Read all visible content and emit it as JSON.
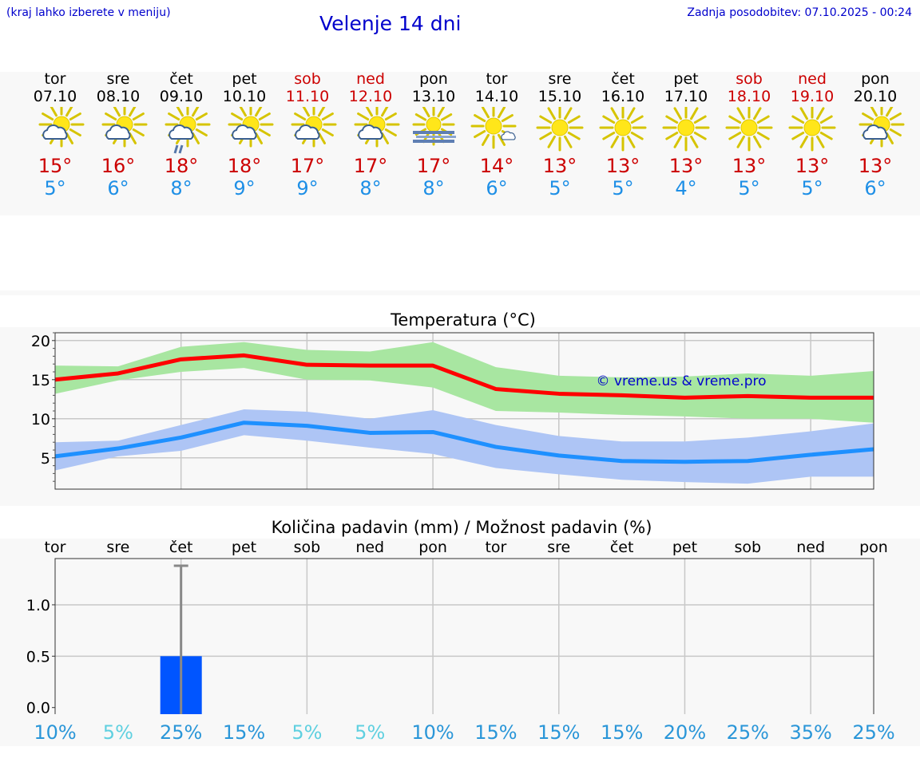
{
  "header": {
    "location_hint": "(kraj lahko izberete v meniju)",
    "title": "Velenje 14 dni",
    "updated": "Zadnja posodobitev: 07.10.2025 - 00:24"
  },
  "days": [
    {
      "name": "tor",
      "date": "07.10",
      "weekend": false,
      "icon": "partly-cloudy-icon",
      "tmax": "15°",
      "tmin": "5°"
    },
    {
      "name": "sre",
      "date": "08.10",
      "weekend": false,
      "icon": "partly-cloudy-icon",
      "tmax": "16°",
      "tmin": "6°"
    },
    {
      "name": "čet",
      "date": "09.10",
      "weekend": false,
      "icon": "partly-cloudy-rain-icon",
      "tmax": "18°",
      "tmin": "8°"
    },
    {
      "name": "pet",
      "date": "10.10",
      "weekend": false,
      "icon": "partly-cloudy-icon",
      "tmax": "18°",
      "tmin": "9°"
    },
    {
      "name": "sob",
      "date": "11.10",
      "weekend": true,
      "icon": "partly-cloudy-icon",
      "tmax": "17°",
      "tmin": "9°"
    },
    {
      "name": "ned",
      "date": "12.10",
      "weekend": true,
      "icon": "partly-cloudy-icon",
      "tmax": "17°",
      "tmin": "8°"
    },
    {
      "name": "pon",
      "date": "13.10",
      "weekend": false,
      "icon": "sun-fog-icon",
      "tmax": "17°",
      "tmin": "8°"
    },
    {
      "name": "tor",
      "date": "14.10",
      "weekend": false,
      "icon": "sun-small-cloud-icon",
      "tmax": "14°",
      "tmin": "6°"
    },
    {
      "name": "sre",
      "date": "15.10",
      "weekend": false,
      "icon": "sun-icon",
      "tmax": "13°",
      "tmin": "5°"
    },
    {
      "name": "čet",
      "date": "16.10",
      "weekend": false,
      "icon": "sun-icon",
      "tmax": "13°",
      "tmin": "5°"
    },
    {
      "name": "pet",
      "date": "17.10",
      "weekend": false,
      "icon": "sun-icon",
      "tmax": "13°",
      "tmin": "4°"
    },
    {
      "name": "sob",
      "date": "18.10",
      "weekend": true,
      "icon": "sun-icon",
      "tmax": "13°",
      "tmin": "5°"
    },
    {
      "name": "ned",
      "date": "19.10",
      "weekend": true,
      "icon": "sun-icon",
      "tmax": "13°",
      "tmin": "5°"
    },
    {
      "name": "pon",
      "date": "20.10",
      "weekend": false,
      "icon": "partly-cloudy-icon",
      "tmax": "13°",
      "tmin": "6°"
    }
  ],
  "colors": {
    "red": "#ff0000",
    "blue": "#1e90ff",
    "green_band": "#a8e6a1",
    "blue_band": "#aec5f5",
    "bar": "#0055ff",
    "weekend": "#cc0000"
  },
  "chart_data": [
    {
      "type": "line",
      "title": "Temperatura (°C)",
      "ylim": [
        1,
        21
      ],
      "yticks": [
        "5",
        "10",
        "15",
        "20"
      ],
      "watermark": "© vreme.us & vreme.pro",
      "x": [
        0,
        1,
        2,
        3,
        4,
        5,
        6,
        7,
        8,
        9,
        10,
        11,
        12,
        13
      ],
      "series": [
        {
          "name": "max",
          "color": "#ff0000",
          "values": [
            15.0,
            15.8,
            17.6,
            18.1,
            16.9,
            16.8,
            16.8,
            13.8,
            13.2,
            13.0,
            12.7,
            12.9,
            12.7,
            12.7
          ],
          "band_low": [
            13.2,
            14.9,
            16.0,
            16.5,
            15.0,
            14.9,
            14.0,
            11.0,
            10.8,
            10.5,
            10.3,
            10.0,
            10.0,
            9.5
          ],
          "band_high": [
            16.8,
            16.7,
            19.2,
            19.8,
            18.8,
            18.6,
            19.8,
            16.6,
            15.5,
            15.3,
            15.4,
            15.8,
            15.5,
            16.1
          ]
        },
        {
          "name": "min",
          "color": "#1e90ff",
          "values": [
            5.2,
            6.2,
            7.6,
            9.5,
            9.1,
            8.2,
            8.3,
            6.4,
            5.3,
            4.6,
            4.5,
            4.6,
            5.4,
            6.1
          ],
          "band_low": [
            3.4,
            5.2,
            5.9,
            7.9,
            7.2,
            6.3,
            5.5,
            3.7,
            2.9,
            2.2,
            1.9,
            1.7,
            2.6,
            2.6
          ],
          "band_high": [
            7.0,
            7.2,
            9.2,
            11.2,
            10.9,
            10.0,
            11.1,
            9.2,
            7.8,
            7.1,
            7.1,
            7.6,
            8.4,
            9.4
          ]
        }
      ]
    },
    {
      "type": "bar",
      "title": "Količina padavin (mm) / Možnost padavin (%)",
      "categories": [
        "tor",
        "sre",
        "čet",
        "pet",
        "sob",
        "ned",
        "pon",
        "tor",
        "sre",
        "čet",
        "pet",
        "sob",
        "ned",
        "pon"
      ],
      "values": [
        0,
        0,
        0.5,
        0,
        0,
        0,
        0,
        0,
        0,
        0,
        0,
        0,
        0,
        0
      ],
      "error_high": [
        0,
        0,
        1.38,
        0,
        0,
        0,
        0,
        0,
        0,
        0,
        0,
        0,
        0,
        0
      ],
      "ylim": [
        -0.08,
        1.45
      ],
      "yticks": [
        "0.0",
        "0.5",
        "1.0"
      ],
      "probability": [
        "10%",
        "5%",
        "25%",
        "15%",
        "5%",
        "5%",
        "10%",
        "15%",
        "15%",
        "15%",
        "20%",
        "25%",
        "35%",
        "25%"
      ]
    }
  ]
}
